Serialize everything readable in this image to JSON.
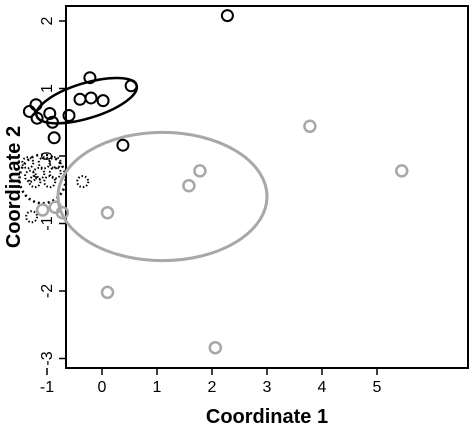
{
  "chart_data": {
    "type": "scatter",
    "title": "",
    "xlabel": "Coordinate 1",
    "ylabel": "Coordinate 2",
    "xlim": [
      -1.5,
      5.7
    ],
    "ylim": [
      -3.1,
      2.2
    ],
    "x_ticks": [
      -1,
      0,
      1,
      2,
      3,
      4,
      5
    ],
    "y_ticks": [
      -3,
      -2,
      -1,
      0,
      1,
      2
    ],
    "grid": false,
    "series": [
      {
        "style": "solid-black",
        "color": "#000000",
        "points": [
          {
            "x": -1.32,
            "y": 0.66
          },
          {
            "x": -1.2,
            "y": 0.76
          },
          {
            "x": -1.18,
            "y": 0.56
          },
          {
            "x": -0.95,
            "y": 0.63
          },
          {
            "x": -0.9,
            "y": 0.5
          },
          {
            "x": -0.87,
            "y": 0.27
          },
          {
            "x": -0.6,
            "y": 0.6
          },
          {
            "x": -0.4,
            "y": 0.84
          },
          {
            "x": -0.22,
            "y": 1.16
          },
          {
            "x": -0.2,
            "y": 0.86
          },
          {
            "x": 0.02,
            "y": 0.82
          },
          {
            "x": 0.53,
            "y": 1.04
          },
          {
            "x": 0.38,
            "y": 0.16
          },
          {
            "x": 2.28,
            "y": 2.08
          }
        ],
        "ellipse": {
          "cx": -0.28,
          "cy": 0.82,
          "rx": 0.95,
          "ry": 0.26,
          "angle_deg": 17
        }
      },
      {
        "style": "dotted-black",
        "color": "#000000",
        "points": [
          {
            "x": -1.35,
            "y": -0.1
          },
          {
            "x": -1.3,
            "y": -0.3
          },
          {
            "x": -1.22,
            "y": -0.38
          },
          {
            "x": -1.15,
            "y": -0.26
          },
          {
            "x": -1.05,
            "y": -0.1
          },
          {
            "x": -0.95,
            "y": -0.38
          },
          {
            "x": -0.85,
            "y": -0.1
          },
          {
            "x": -0.85,
            "y": -0.25
          },
          {
            "x": -0.35,
            "y": -0.38
          },
          {
            "x": -1.28,
            "y": -0.9
          }
        ],
        "ellipse": {
          "cx": -1.08,
          "cy": -0.34,
          "rx": 0.42,
          "ry": 0.36,
          "angle_deg": 0
        }
      },
      {
        "style": "gray",
        "color": "#a8a8a8",
        "points": [
          {
            "x": -1.08,
            "y": -0.8
          },
          {
            "x": -0.85,
            "y": -0.76
          },
          {
            "x": -0.72,
            "y": -0.84
          },
          {
            "x": 0.1,
            "y": -0.84
          },
          {
            "x": 1.58,
            "y": -0.44
          },
          {
            "x": 1.78,
            "y": -0.22
          },
          {
            "x": 3.78,
            "y": 0.44
          },
          {
            "x": 5.45,
            "y": -0.22
          },
          {
            "x": 0.1,
            "y": -2.02
          },
          {
            "x": 2.06,
            "y": -2.84
          }
        ],
        "ellipse": {
          "cx": 1.1,
          "cy": -0.6,
          "rx": 1.9,
          "ry": 0.95,
          "angle_deg": 0
        }
      }
    ]
  }
}
